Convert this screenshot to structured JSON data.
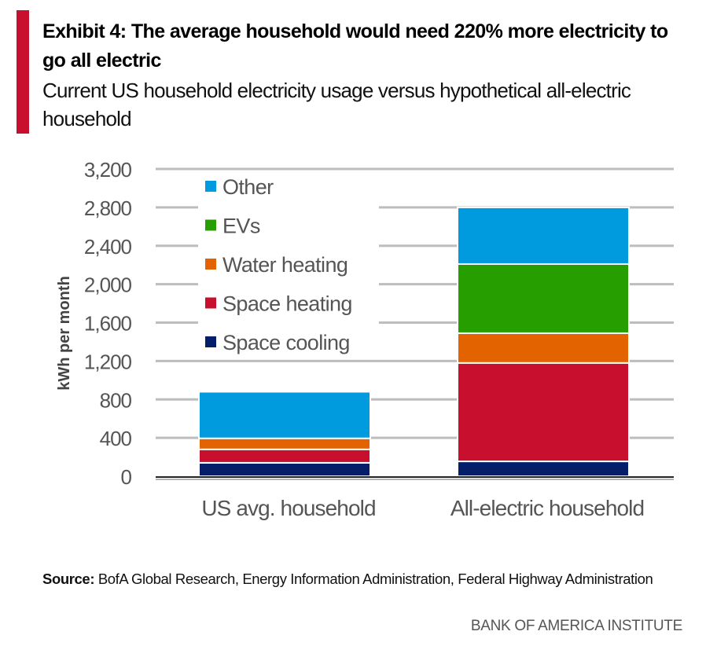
{
  "header": {
    "title": "Exhibit 4: The average household would need 220% more electricity to go all electric",
    "subtitle": "Current US household electricity usage versus hypothetical all-electric household",
    "accent_color": "#c8102e"
  },
  "chart_data": {
    "type": "bar",
    "stacked": true,
    "title": "Exhibit 4: The average household would need 220% more electricity to go all electric",
    "subtitle": "Current US household electricity usage versus hypothetical all-electric household",
    "xlabel": "",
    "ylabel": "kWh per month",
    "ylim": [
      0,
      3200
    ],
    "yticks": [
      0,
      400,
      800,
      1200,
      1600,
      2000,
      2400,
      2800,
      3200
    ],
    "ytick_labels": [
      "0",
      "400",
      "800",
      "1,200",
      "1,600",
      "2,000",
      "2,400",
      "2,800",
      "3,200"
    ],
    "grid": true,
    "legend_position": "top-left",
    "categories": [
      "US avg. household",
      "All-electric household"
    ],
    "series": [
      {
        "name": "Space cooling",
        "color": "#041e6a",
        "values": [
          140,
          155
        ]
      },
      {
        "name": "Space heating",
        "color": "#c8102e",
        "values": [
          140,
          1025
        ]
      },
      {
        "name": "Water heating",
        "color": "#e36300",
        "values": [
          115,
          310
        ]
      },
      {
        "name": "EVs",
        "color": "#269e00",
        "values": [
          0,
          720
        ]
      },
      {
        "name": "Other",
        "color": "#009ade",
        "values": [
          485,
          590
        ]
      }
    ],
    "legend_order": [
      "Other",
      "EVs",
      "Water heating",
      "Space heating",
      "Space cooling"
    ]
  },
  "footer": {
    "source_label": "Source:",
    "source_text": " BofA Global Research, Energy Information Administration, Federal Highway Administration",
    "brand": "BANK OF AMERICA INSTITUTE"
  }
}
